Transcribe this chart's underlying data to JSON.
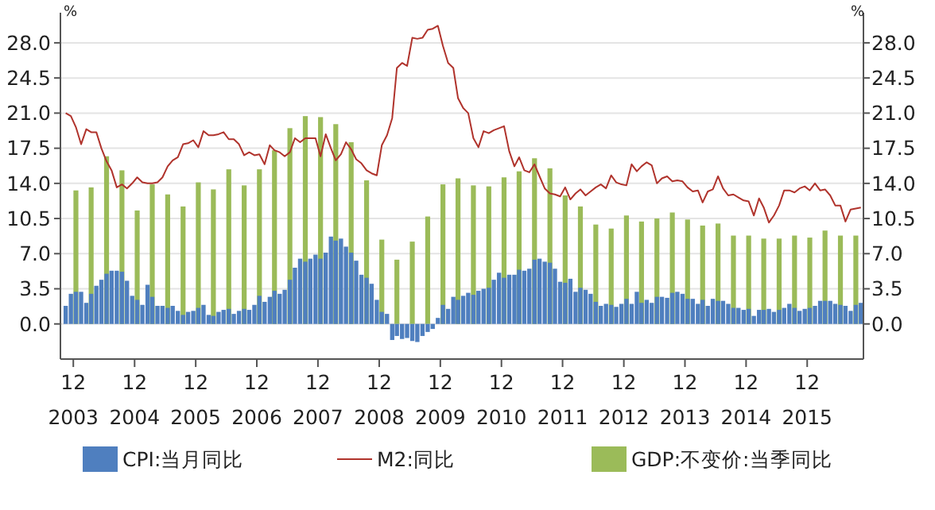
{
  "chart_data": {
    "type": "bar",
    "ylabel": "%",
    "y2label": "%",
    "x": [
      "2003-10",
      "2003-11",
      "2003-12",
      "2004-01",
      "2004-02",
      "2004-03",
      "2004-04",
      "2004-05",
      "2004-06",
      "2004-07",
      "2004-08",
      "2004-09",
      "2004-10",
      "2004-11",
      "2004-12",
      "2005-01",
      "2005-02",
      "2005-03",
      "2005-04",
      "2005-05",
      "2005-06",
      "2005-07",
      "2005-08",
      "2005-09",
      "2005-10",
      "2005-11",
      "2005-12",
      "2006-01",
      "2006-02",
      "2006-03",
      "2006-04",
      "2006-05",
      "2006-06",
      "2006-07",
      "2006-08",
      "2006-09",
      "2006-10",
      "2006-11",
      "2006-12",
      "2007-01",
      "2007-02",
      "2007-03",
      "2007-04",
      "2007-05",
      "2007-06",
      "2007-07",
      "2007-08",
      "2007-09",
      "2007-10",
      "2007-11",
      "2007-12",
      "2008-01",
      "2008-02",
      "2008-03",
      "2008-04",
      "2008-05",
      "2008-06",
      "2008-07",
      "2008-08",
      "2008-09",
      "2008-10",
      "2008-11",
      "2008-12",
      "2009-01",
      "2009-02",
      "2009-03",
      "2009-04",
      "2009-05",
      "2009-06",
      "2009-07",
      "2009-08",
      "2009-09",
      "2009-10",
      "2009-11",
      "2009-12",
      "2010-01",
      "2010-02",
      "2010-03",
      "2010-04",
      "2010-05",
      "2010-06",
      "2010-07",
      "2010-08",
      "2010-09",
      "2010-10",
      "2010-11",
      "2010-12",
      "2011-01",
      "2011-02",
      "2011-03",
      "2011-04",
      "2011-05",
      "2011-06",
      "2011-07",
      "2011-08",
      "2011-09",
      "2011-10",
      "2011-11",
      "2011-12",
      "2012-01",
      "2012-02",
      "2012-03",
      "2012-04",
      "2012-05",
      "2012-06",
      "2012-07",
      "2012-08",
      "2012-09",
      "2012-10",
      "2012-11",
      "2012-12",
      "2013-01",
      "2013-02",
      "2013-03",
      "2013-04",
      "2013-05",
      "2013-06",
      "2013-07",
      "2013-08",
      "2013-09",
      "2013-10",
      "2013-11",
      "2013-12",
      "2014-01",
      "2014-02",
      "2014-03",
      "2014-04",
      "2014-05",
      "2014-06",
      "2014-07",
      "2014-08",
      "2014-09",
      "2014-10",
      "2014-11",
      "2014-12",
      "2015-01",
      "2015-02",
      "2015-03",
      "2015-04",
      "2015-05",
      "2015-06",
      "2015-07",
      "2015-08",
      "2015-09",
      "2015-10",
      "2015-11",
      "2015-12",
      "2016-01",
      "2016-02",
      "2016-03",
      "2016-04",
      "2016-05",
      "2016-06",
      "2016-07",
      "2016-08",
      "2016-09",
      "2016-10"
    ],
    "series": [
      {
        "name": "CPI:当月同比",
        "color": "#4f7fbf",
        "values": [
          1.8,
          3.0,
          3.2,
          3.2,
          2.1,
          3.0,
          3.8,
          4.4,
          5.0,
          5.3,
          5.3,
          5.2,
          4.3,
          2.8,
          2.4,
          1.9,
          3.9,
          2.7,
          1.8,
          1.8,
          1.6,
          1.8,
          1.3,
          0.9,
          1.2,
          1.3,
          1.6,
          1.9,
          0.9,
          0.8,
          1.2,
          1.4,
          1.5,
          1.0,
          1.3,
          1.5,
          1.4,
          1.9,
          2.8,
          2.2,
          2.7,
          3.3,
          3.0,
          3.4,
          4.4,
          5.6,
          6.5,
          6.2,
          6.5,
          6.9,
          6.5,
          7.1,
          8.7,
          8.3,
          8.5,
          7.7,
          7.1,
          6.3,
          4.9,
          4.6,
          4.0,
          2.4,
          1.2,
          1.0,
          -1.6,
          -1.2,
          -1.5,
          -1.4,
          -1.7,
          -1.8,
          -1.2,
          -0.8,
          -0.5,
          0.6,
          1.9,
          1.5,
          2.7,
          2.4,
          2.8,
          3.1,
          2.9,
          3.3,
          3.5,
          3.6,
          4.4,
          5.1,
          4.6,
          4.9,
          4.9,
          5.4,
          5.3,
          5.5,
          6.4,
          6.5,
          6.2,
          6.1,
          5.5,
          4.2,
          4.1,
          4.5,
          3.2,
          3.6,
          3.4,
          3.0,
          2.2,
          1.8,
          2.0,
          1.9,
          1.7,
          2.0,
          2.5,
          2.0,
          3.2,
          2.1,
          2.4,
          2.1,
          2.7,
          2.7,
          2.6,
          3.1,
          3.2,
          3.0,
          2.5,
          2.5,
          2.0,
          2.4,
          1.8,
          2.5,
          2.3,
          2.3,
          2.0,
          1.6,
          1.6,
          1.4,
          1.5,
          0.8,
          1.4,
          1.4,
          1.5,
          1.2,
          1.4,
          1.6,
          2.0,
          1.6,
          1.3,
          1.5,
          1.6,
          1.8,
          2.3,
          2.3,
          2.3,
          2.0,
          1.9,
          1.8,
          1.3,
          1.9,
          2.1
        ]
      },
      {
        "name": "M2:同比",
        "type": "line",
        "color": "#b0332c",
        "values": [
          21.0,
          20.7,
          19.6,
          17.9,
          19.4,
          19.1,
          19.1,
          17.5,
          16.2,
          15.3,
          13.6,
          13.9,
          13.5,
          14.0,
          14.6,
          14.1,
          14.0,
          14.0,
          14.1,
          14.6,
          15.7,
          16.3,
          16.6,
          17.9,
          18.0,
          18.3,
          17.6,
          19.2,
          18.8,
          18.8,
          18.9,
          19.1,
          18.4,
          18.4,
          17.9,
          16.8,
          17.1,
          16.8,
          16.9,
          15.9,
          17.8,
          17.3,
          17.1,
          16.7,
          17.1,
          18.5,
          18.1,
          18.5,
          18.5,
          18.5,
          16.7,
          18.9,
          17.5,
          16.3,
          16.9,
          18.1,
          17.4,
          16.4,
          16.0,
          15.3,
          15.0,
          14.8,
          17.8,
          18.8,
          20.5,
          25.5,
          26.0,
          25.7,
          28.5,
          28.4,
          28.5,
          29.3,
          29.4,
          29.7,
          27.7,
          26.0,
          25.5,
          22.5,
          21.5,
          21.0,
          18.5,
          17.6,
          19.2,
          19.0,
          19.3,
          19.5,
          19.7,
          17.2,
          15.7,
          16.6,
          15.3,
          15.1,
          15.9,
          14.7,
          13.5,
          13.0,
          12.9,
          12.7,
          13.6,
          12.4,
          13.0,
          13.4,
          12.8,
          13.2,
          13.6,
          13.9,
          13.5,
          14.8,
          14.1,
          13.9,
          13.8,
          15.9,
          15.2,
          15.7,
          16.1,
          15.8,
          14.0,
          14.5,
          14.7,
          14.2,
          14.3,
          14.2,
          13.6,
          13.2,
          13.3,
          12.1,
          13.2,
          13.4,
          14.7,
          13.5,
          12.8,
          12.9,
          12.6,
          12.3,
          12.2,
          10.8,
          12.5,
          11.6,
          10.1,
          10.8,
          11.8,
          13.3,
          13.3,
          13.1,
          13.5,
          13.7,
          13.3,
          14.0,
          13.3,
          13.4,
          12.8,
          11.8,
          11.8,
          10.2,
          11.4,
          11.5,
          11.6
        ]
      },
      {
        "name": "GDP:不变价:当季同比",
        "color": "#9bbb59",
        "x": [
          "2003-12",
          "2004-03",
          "2004-06",
          "2004-09",
          "2004-12",
          "2005-03",
          "2005-06",
          "2005-09",
          "2005-12",
          "2006-03",
          "2006-06",
          "2006-09",
          "2006-12",
          "2007-03",
          "2007-06",
          "2007-09",
          "2007-12",
          "2008-03",
          "2008-06",
          "2008-09",
          "2008-12",
          "2009-03",
          "2009-06",
          "2009-09",
          "2009-12",
          "2010-03",
          "2010-06",
          "2010-09",
          "2010-12",
          "2011-03",
          "2011-06",
          "2011-09",
          "2011-12",
          "2012-03",
          "2012-06",
          "2012-09",
          "2012-12",
          "2013-03",
          "2013-06",
          "2013-09",
          "2013-12",
          "2014-03",
          "2014-06",
          "2014-09",
          "2014-12",
          "2015-03",
          "2015-06",
          "2015-09",
          "2015-12",
          "2016-03",
          "2016-06",
          "2016-09"
        ],
        "values": [
          13.3,
          13.6,
          16.7,
          15.3,
          11.3,
          13.9,
          12.9,
          11.7,
          14.1,
          13.4,
          15.4,
          13.8,
          15.4,
          17.3,
          19.5,
          20.7,
          20.6,
          19.9,
          18.1,
          14.3,
          8.4,
          6.4,
          8.2,
          10.7,
          13.9,
          14.5,
          13.8,
          13.7,
          14.6,
          15.2,
          16.5,
          15.5,
          12.8,
          11.7,
          9.9,
          9.5,
          10.8,
          10.2,
          10.5,
          11.1,
          10.4,
          9.8,
          10.0,
          8.8,
          8.8,
          8.5,
          8.5,
          8.8,
          8.6,
          9.3,
          8.8,
          8.8
        ]
      }
    ],
    "xlim": [
      "2003-09-15",
      "2016-11-01"
    ],
    "xticks": [
      {
        "value": "2003-12",
        "label": "12\n2003"
      },
      {
        "value": "2004-12",
        "label": "12\n2004"
      },
      {
        "value": "2005-12",
        "label": "12\n2005"
      },
      {
        "value": "2006-12",
        "label": "12\n2006"
      },
      {
        "value": "2007-12",
        "label": "12\n2007"
      },
      {
        "value": "2008-12",
        "label": "12\n2008"
      },
      {
        "value": "2009-12",
        "label": "12\n2009"
      },
      {
        "value": "2010-12",
        "label": "12\n2010"
      },
      {
        "value": "2011-12",
        "label": "12\n2011"
      },
      {
        "value": "2012-12",
        "label": "12\n2012"
      },
      {
        "value": "2013-12",
        "label": "12\n2013"
      },
      {
        "value": "2014-12",
        "label": "12\n2014"
      },
      {
        "value": "2015-12",
        "label": "12\n2015"
      }
    ],
    "ylim": [
      -3.5,
      31
    ],
    "yticks": [
      {
        "value": 0,
        "label": "0.0"
      },
      3.5,
      {
        "value": 7,
        "label": "7.0"
      },
      10.5,
      {
        "value": 14,
        "label": "14.0"
      },
      17.5,
      {
        "value": 21,
        "label": "21.0"
      },
      24.5,
      {
        "value": 28,
        "label": "28.0"
      }
    ],
    "y2lim": [
      -3.5,
      31
    ],
    "y2ticks": [
      {
        "value": 0,
        "label": "0.0"
      },
      3.5,
      {
        "value": 7,
        "label": "7.0"
      },
      10.5,
      {
        "value": 14,
        "label": "14.0"
      },
      17.5,
      {
        "value": 21,
        "label": "21.0"
      },
      24.5,
      {
        "value": 28,
        "label": "28.0"
      }
    ],
    "grid": "y",
    "legend": "bottom"
  }
}
